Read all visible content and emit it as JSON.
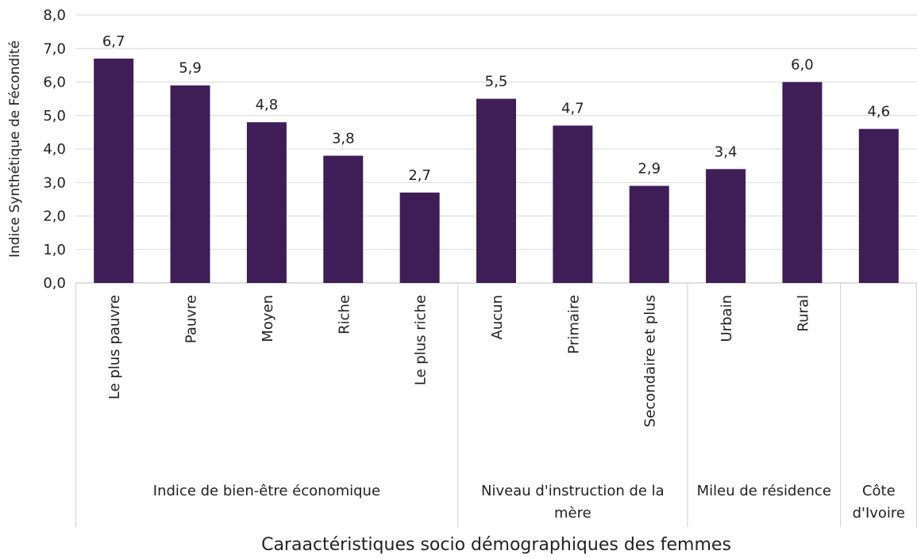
{
  "chart_data": {
    "type": "bar",
    "y_label": "Indice Synthétique de Fécondité",
    "x_label": "Caraactéristiques socio démographiques des femmes",
    "groups": [
      {
        "label": "Indice de bien-être économique",
        "categories": [
          "Le plus pauvre",
          "Pauvre",
          "Moyen",
          "Riche",
          "Le plus riche"
        ]
      },
      {
        "label": "Niveau d'instruction de la mère",
        "categories": [
          "Aucun",
          "Primaire",
          "Secondaire et plus"
        ]
      },
      {
        "label": "Mileu de résidence",
        "categories": [
          "Urbain",
          "Rural"
        ]
      },
      {
        "label": "Côte d'Ivoire",
        "categories": [
          null
        ]
      }
    ],
    "values": [
      6.7,
      5.9,
      4.8,
      3.8,
      2.7,
      5.5,
      4.7,
      2.9,
      3.4,
      6.0,
      4.6
    ],
    "value_labels": [
      "6,7",
      "5,9",
      "4,8",
      "3,8",
      "2,7",
      "5,5",
      "4,7",
      "2,9",
      "3,4",
      "6,0",
      "4,6"
    ],
    "color": "#3f1d57",
    "ylim": [
      0,
      8
    ],
    "yticks": [
      {
        "value": 0,
        "label": "0,0"
      },
      {
        "value": 1,
        "label": "1,0"
      },
      {
        "value": 2,
        "label": "2,0"
      },
      {
        "value": 3,
        "label": "3,0"
      },
      {
        "value": 4,
        "label": "4,0"
      },
      {
        "value": 5,
        "label": "5,0"
      },
      {
        "value": 6,
        "label": "6,0"
      },
      {
        "value": 7,
        "label": "7,0"
      },
      {
        "value": 8,
        "label": "8,0"
      }
    ],
    "grid": true
  }
}
